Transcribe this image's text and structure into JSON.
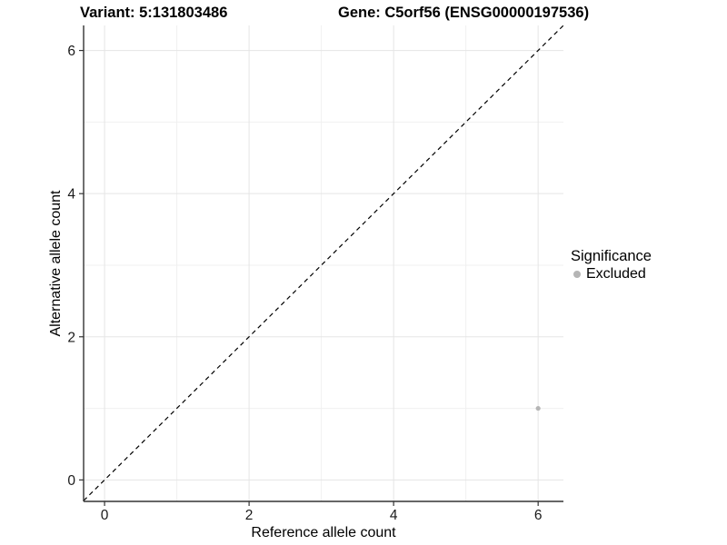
{
  "titles": {
    "variant": "Variant: 5:131803486",
    "gene": "Gene: C5orf56 (ENSG00000197536)"
  },
  "chart_data": {
    "type": "scatter",
    "xlabel": "Reference allele count",
    "ylabel": "Alternative allele count",
    "xlim": [
      -0.29,
      6.35
    ],
    "ylim": [
      -0.3,
      6.35
    ],
    "x_ticks": [
      0,
      2,
      4,
      6
    ],
    "y_ticks": [
      0,
      2,
      4,
      6
    ],
    "x_minor_ticks": [
      1,
      3,
      5
    ],
    "y_minor_ticks": [
      1,
      3,
      5
    ],
    "grid": true,
    "identity_line": {
      "slope": 1,
      "intercept": 0,
      "style": "dashed",
      "color": "#000000"
    },
    "series": [
      {
        "name": "Excluded",
        "color": "#b5b5b5",
        "points": [
          {
            "x": 6,
            "y": 1
          }
        ]
      }
    ],
    "legend": {
      "title": "Significance",
      "position": "right",
      "items": [
        {
          "label": "Excluded",
          "color": "#b5b5b5"
        }
      ]
    },
    "colors": {
      "major_grid": "#e5e5e5",
      "minor_grid": "#f0f0f0",
      "axis_line": "#333333",
      "tick_text": "#1a1a1a",
      "background": "#ffffff"
    }
  }
}
